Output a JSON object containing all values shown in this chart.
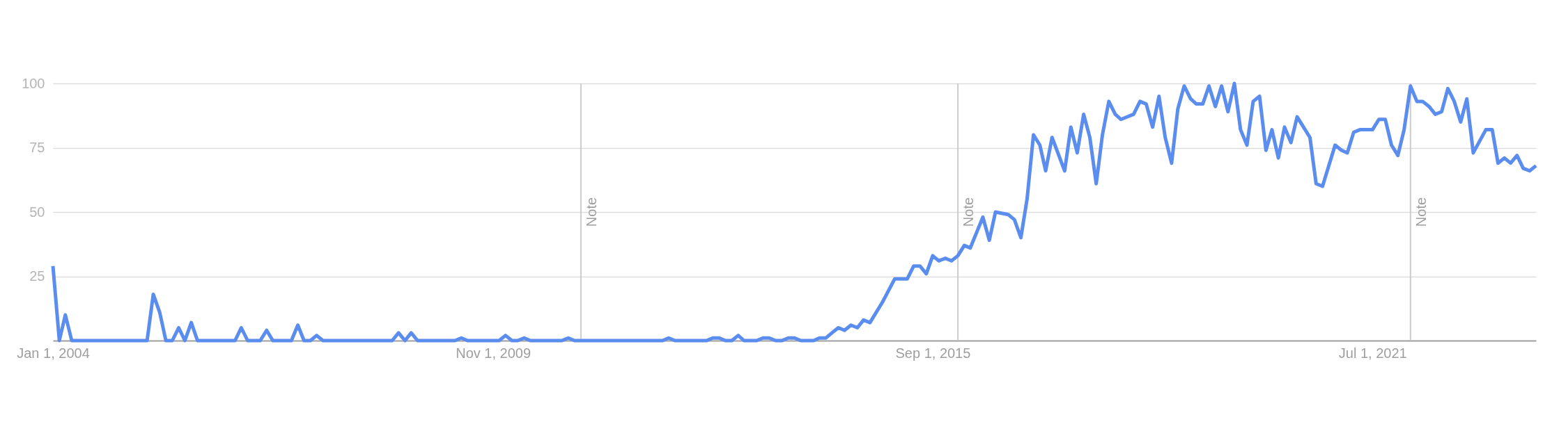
{
  "chart_data": {
    "type": "line",
    "grid": "y",
    "line_style": "solid",
    "xlim": [
      "2004-01",
      "2023-09"
    ],
    "ylim": [
      0,
      100
    ],
    "yticks": [
      25,
      50,
      75,
      100
    ],
    "xticks": [
      {
        "value": "2004-01-01",
        "label": "Jan 1, 2004"
      },
      {
        "value": "2009-11-01",
        "label": "Nov 1, 2009"
      },
      {
        "value": "2015-09-01",
        "label": "Sep 1, 2015"
      },
      {
        "value": "2021-07-01",
        "label": "Jul 1, 2021"
      }
    ],
    "ref_lines": [
      {
        "axis": "x",
        "value": "2011-01-01",
        "label": "Note",
        "color": "#cccccc"
      },
      {
        "axis": "x",
        "value": "2016-01-01",
        "label": "Note",
        "color": "#cccccc"
      },
      {
        "axis": "x",
        "value": "2022-01-01",
        "label": "Note",
        "color": "#cccccc"
      }
    ],
    "series": [
      {
        "color": "#5b8def",
        "x": [
          "2004-01",
          "2004-02",
          "2004-03",
          "2004-04",
          "2005-04",
          "2005-05",
          "2005-06",
          "2005-07",
          "2005-08",
          "2005-09",
          "2005-10",
          "2005-11",
          "2005-12",
          "2006-06",
          "2006-07",
          "2006-08",
          "2006-10",
          "2006-11",
          "2006-12",
          "2007-03",
          "2007-04",
          "2007-05",
          "2007-06",
          "2007-07",
          "2007-08",
          "2008-07",
          "2008-08",
          "2008-09",
          "2008-10",
          "2008-11",
          "2009-05",
          "2009-06",
          "2009-07",
          "2009-12",
          "2010-01",
          "2010-02",
          "2010-03",
          "2010-04",
          "2010-05",
          "2010-10",
          "2010-11",
          "2010-12",
          "2012-02",
          "2012-03",
          "2012-04",
          "2012-09",
          "2012-10",
          "2012-11",
          "2012-12",
          "2013-01",
          "2013-02",
          "2013-03",
          "2013-05",
          "2013-06",
          "2013-07",
          "2013-08",
          "2013-09",
          "2013-10",
          "2013-11",
          "2013-12",
          "2014-02",
          "2014-03",
          "2014-04",
          "2014-05",
          "2014-06",
          "2014-07",
          "2014-08",
          "2014-09",
          "2014-10",
          "2014-11",
          "2015-01",
          "2015-03",
          "2015-05",
          "2015-06",
          "2015-07",
          "2015-08",
          "2015-09",
          "2015-10",
          "2015-11",
          "2015-12",
          "2016-01",
          "2016-02",
          "2016-03",
          "2016-05",
          "2016-06",
          "2016-07",
          "2016-09",
          "2016-10",
          "2016-11",
          "2016-12",
          "2017-01",
          "2017-02",
          "2017-03",
          "2017-04",
          "2017-06",
          "2017-07",
          "2017-08",
          "2017-09",
          "2017-10",
          "2017-11",
          "2017-12",
          "2018-01",
          "2018-02",
          "2018-03",
          "2018-05",
          "2018-06",
          "2018-07",
          "2018-08",
          "2018-09",
          "2018-10",
          "2018-11",
          "2018-12",
          "2019-01",
          "2019-02",
          "2019-03",
          "2019-04",
          "2019-05",
          "2019-06",
          "2019-07",
          "2019-08",
          "2019-09",
          "2019-10",
          "2019-11",
          "2019-12",
          "2020-01",
          "2020-02",
          "2020-03",
          "2020-04",
          "2020-05",
          "2020-06",
          "2020-07",
          "2020-08",
          "2020-09",
          "2020-10",
          "2020-11",
          "2021-01",
          "2021-02",
          "2021-03",
          "2021-04",
          "2021-05",
          "2021-07",
          "2021-08",
          "2021-09",
          "2021-10",
          "2021-11",
          "2021-12",
          "2022-01",
          "2022-02",
          "2022-03",
          "2022-04",
          "2022-05",
          "2022-06",
          "2022-07",
          "2022-08",
          "2022-09",
          "2022-10",
          "2022-11",
          "2023-01",
          "2023-02",
          "2023-03",
          "2023-04",
          "2023-05",
          "2023-06",
          "2023-07",
          "2023-08",
          "2023-09"
        ],
        "values": [
          29,
          0,
          10,
          0,
          0,
          18,
          11,
          0,
          0,
          5,
          0,
          7,
          0,
          0,
          5,
          0,
          0,
          4,
          0,
          0,
          6,
          0,
          0,
          2,
          0,
          0,
          3,
          0,
          3,
          0,
          0,
          1,
          0,
          0,
          2,
          0,
          0,
          1,
          0,
          0,
          1,
          0,
          0,
          1,
          0,
          0,
          1,
          1,
          0,
          0,
          2,
          0,
          0,
          1,
          1,
          0,
          0,
          1,
          1,
          0,
          0,
          1,
          1,
          3,
          5,
          4,
          6,
          5,
          8,
          7,
          15,
          24,
          24,
          29,
          29,
          26,
          33,
          31,
          32,
          31,
          33,
          37,
          36,
          48,
          39,
          50,
          49,
          47,
          40,
          55,
          80,
          76,
          66,
          79,
          66,
          83,
          73,
          88,
          79,
          61,
          80,
          93,
          88,
          86,
          88,
          93,
          92,
          83,
          95,
          79,
          69,
          90,
          99,
          94,
          92,
          92,
          99,
          91,
          99,
          89,
          100,
          82,
          76,
          93,
          95,
          74,
          82,
          71,
          83,
          77,
          87,
          83,
          79,
          61,
          60,
          76,
          74,
          73,
          81,
          82,
          82,
          86,
          86,
          76,
          72,
          82,
          99,
          93,
          93,
          91,
          88,
          89,
          98,
          93,
          85,
          94,
          73,
          82,
          82,
          69,
          71,
          69,
          72,
          67,
          66,
          68
        ]
      }
    ]
  }
}
